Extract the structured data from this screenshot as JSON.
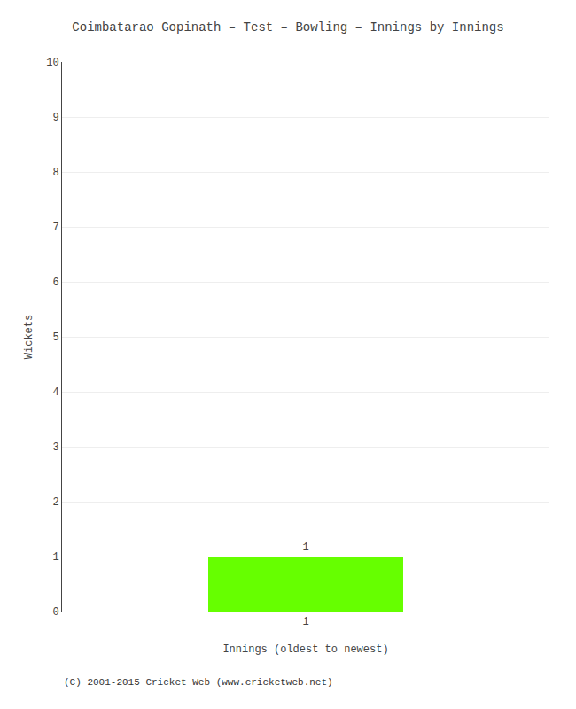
{
  "chart_data": {
    "type": "bar",
    "title": "Coimbatarao Gopinath – Test – Bowling – Innings by Innings",
    "xlabel": "Innings (oldest to newest)",
    "ylabel": "Wickets",
    "annotations": [
      "(C) 2001-2015 Cricket Web (www.cricketweb.net)"
    ],
    "x": [
      1
    ],
    "values": [
      1
    ],
    "color": "#66ff00",
    "data_labels": true,
    "xlim": [
      0,
      2
    ],
    "xticks": [
      1
    ],
    "ylim": [
      0,
      10
    ],
    "yticks": [
      0,
      1,
      2,
      3,
      4,
      5,
      6,
      7,
      8,
      9,
      10
    ],
    "grid": "y"
  }
}
